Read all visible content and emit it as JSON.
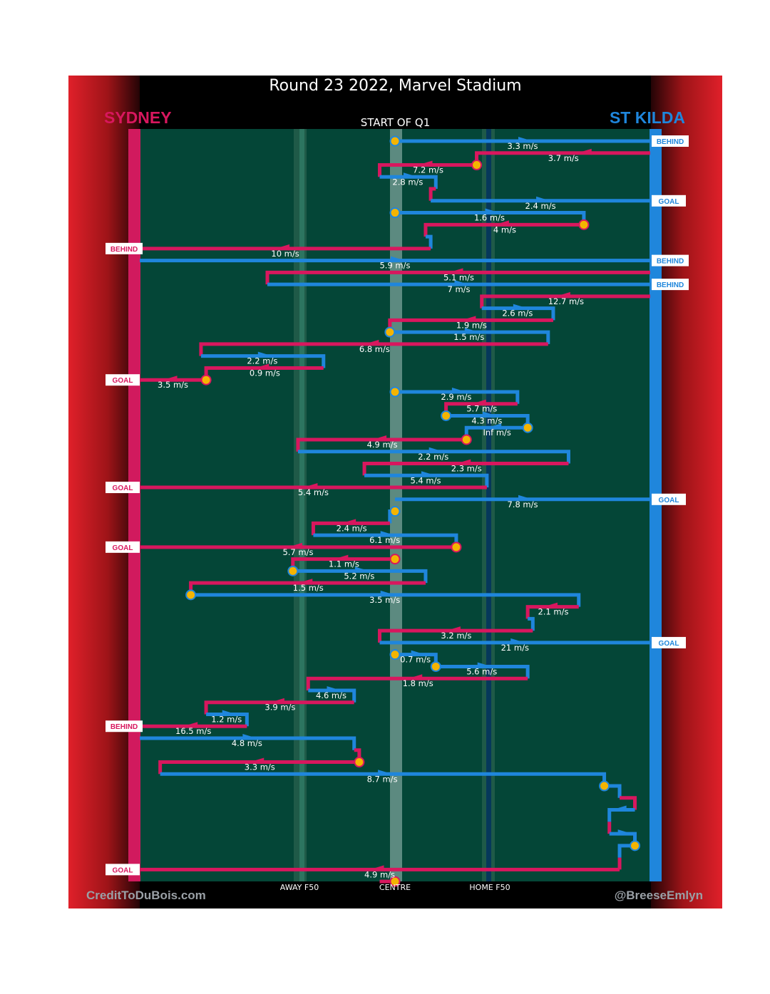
{
  "title": "Round 23 2022, Marvel Stadium",
  "teams": {
    "left": {
      "name": "SYDNEY",
      "color": "#d8175e"
    },
    "right": {
      "name": "ST KILDA",
      "color": "#1f86dc"
    }
  },
  "start_label": "START OF Q1",
  "axis_labels": {
    "away_f50": "AWAY F50",
    "centre": "CENTRE",
    "home_f50": "HOME F50"
  },
  "credits": {
    "left": "CreditToDuBois.com",
    "right": "@BreeseEmlyn"
  },
  "colors": {
    "sydney": "#d8175e",
    "st_kilda": "#1f86dc",
    "ball": "#f4b400",
    "field": "#044637"
  },
  "icons": {
    "ball": "ball-marker-icon",
    "arrow": "arrow-icon"
  },
  "chart_data": {
    "type": "line",
    "x_axis": "field position, 0 = Sydney goal line, 100 = St Kilda goal line",
    "y_axis": "chain sequence, top to bottom",
    "chains": [
      {
        "seq": 1,
        "team": "STK",
        "speed": "3.3 m/s",
        "path": [
          [
            50,
            1
          ],
          [
            100,
            1
          ]
        ],
        "end": "BEHIND",
        "ball_start": true
      },
      {
        "seq": 2,
        "team": "SYD",
        "speed": "3.7 m/s",
        "path": [
          [
            100,
            2
          ],
          [
            66,
            2
          ],
          [
            66,
            3
          ]
        ],
        "arrow_start": true
      },
      {
        "seq": 3,
        "team": "SYD",
        "speed": "7.2 m/s",
        "path": [
          [
            66,
            3
          ],
          [
            47,
            3
          ],
          [
            47,
            4
          ]
        ],
        "ball_start": true
      },
      {
        "seq": 4,
        "team": "STK",
        "speed": "2.8 m/s",
        "path": [
          [
            47,
            4
          ],
          [
            58,
            4
          ],
          [
            58,
            5
          ]
        ]
      },
      {
        "seq": 5,
        "team": "SYD",
        "speed": "",
        "path": [
          [
            58,
            5
          ],
          [
            57,
            5
          ],
          [
            57,
            6
          ]
        ]
      },
      {
        "seq": 6,
        "team": "STK",
        "speed": "2.4 m/s",
        "path": [
          [
            57,
            6
          ],
          [
            100,
            6
          ]
        ],
        "end": "GOAL"
      },
      {
        "seq": 7,
        "team": "STK",
        "speed": "1.6 m/s",
        "path": [
          [
            50,
            7
          ],
          [
            87,
            7
          ],
          [
            87,
            8
          ]
        ],
        "ball_start": true
      },
      {
        "seq": 8,
        "team": "SYD",
        "speed": "4 m/s",
        "path": [
          [
            87,
            8
          ],
          [
            56,
            8
          ],
          [
            56,
            9
          ]
        ],
        "ball_start": true
      },
      {
        "seq": 9,
        "team": "STK",
        "speed": "",
        "path": [
          [
            56,
            9
          ],
          [
            57,
            9
          ],
          [
            57,
            10
          ]
        ]
      },
      {
        "seq": 10,
        "team": "SYD",
        "speed": "10 m/s",
        "path": [
          [
            57,
            10
          ],
          [
            0,
            10
          ]
        ],
        "end": "BEHIND"
      },
      {
        "seq": 11,
        "team": "STK",
        "speed": "5.9 m/s",
        "path": [
          [
            0,
            11
          ],
          [
            100,
            11
          ]
        ],
        "end": "BEHIND"
      },
      {
        "seq": 12,
        "team": "SYD",
        "speed": "5.1 m/s",
        "path": [
          [
            100,
            12
          ],
          [
            25,
            12
          ],
          [
            25,
            13
          ]
        ]
      },
      {
        "seq": 13,
        "team": "STK",
        "speed": "7 m/s",
        "path": [
          [
            25,
            13
          ],
          [
            100,
            13
          ]
        ],
        "end": "BEHIND"
      },
      {
        "seq": 14,
        "team": "SYD",
        "speed": "12.7 m/s",
        "path": [
          [
            100,
            14
          ],
          [
            67,
            14
          ],
          [
            67,
            15
          ]
        ]
      },
      {
        "seq": 15,
        "team": "STK",
        "speed": "2.6 m/s",
        "path": [
          [
            67,
            15
          ],
          [
            81,
            15
          ],
          [
            81,
            16
          ]
        ]
      },
      {
        "seq": 16,
        "team": "SYD",
        "speed": "1.9 m/s",
        "path": [
          [
            81,
            16
          ],
          [
            49,
            16
          ],
          [
            49,
            17
          ]
        ]
      },
      {
        "seq": 17,
        "team": "STK",
        "speed": "1.5 m/s",
        "path": [
          [
            49,
            17
          ],
          [
            80,
            17
          ],
          [
            80,
            18
          ]
        ],
        "ball_start": true
      },
      {
        "seq": 18,
        "team": "SYD",
        "speed": "6.8 m/s",
        "path": [
          [
            80,
            18
          ],
          [
            12,
            18
          ],
          [
            12,
            19
          ]
        ]
      },
      {
        "seq": 19,
        "team": "STK",
        "speed": "2.2 m/s",
        "path": [
          [
            12,
            19
          ],
          [
            36,
            19
          ],
          [
            36,
            20
          ]
        ]
      },
      {
        "seq": 20,
        "team": "SYD",
        "speed": "0.9 m/s",
        "path": [
          [
            36,
            20
          ],
          [
            13,
            20
          ],
          [
            13,
            21
          ]
        ]
      },
      {
        "seq": 21,
        "team": "SYD",
        "speed": "3.5 m/s",
        "path": [
          [
            13,
            21
          ],
          [
            0,
            21
          ]
        ],
        "end": "GOAL",
        "ball_start": true
      },
      {
        "seq": 22,
        "team": "STK",
        "speed": "2.9 m/s",
        "path": [
          [
            50,
            22
          ],
          [
            74,
            22
          ],
          [
            74,
            23
          ]
        ],
        "ball_start": true
      },
      {
        "seq": 23,
        "team": "SYD",
        "speed": "5.7 m/s",
        "path": [
          [
            74,
            23
          ],
          [
            60,
            23
          ],
          [
            60,
            24
          ]
        ]
      },
      {
        "seq": 24,
        "team": "STK",
        "speed": "4.3 m/s",
        "path": [
          [
            60,
            24
          ],
          [
            76,
            24
          ],
          [
            76,
            25
          ]
        ],
        "ball_start": true
      },
      {
        "seq": 25,
        "team": "STK",
        "speed": "Inf m/s",
        "path": [
          [
            76,
            25
          ],
          [
            64,
            25
          ],
          [
            64,
            26
          ]
        ],
        "ball_start": true
      },
      {
        "seq": 26,
        "team": "SYD",
        "speed": "4.9 m/s",
        "path": [
          [
            64,
            26
          ],
          [
            31,
            26
          ],
          [
            31,
            27
          ]
        ],
        "ball_start": true
      },
      {
        "seq": 27,
        "team": "STK",
        "speed": "2.2 m/s",
        "path": [
          [
            31,
            27
          ],
          [
            84,
            27
          ],
          [
            84,
            28
          ]
        ]
      },
      {
        "seq": 28,
        "team": "SYD",
        "speed": "2.3 m/s",
        "path": [
          [
            84,
            28
          ],
          [
            44,
            28
          ],
          [
            44,
            29
          ]
        ]
      },
      {
        "seq": 29,
        "team": "STK",
        "speed": "5.4 m/s",
        "path": [
          [
            44,
            29
          ],
          [
            68,
            29
          ],
          [
            68,
            30
          ]
        ]
      },
      {
        "seq": 30,
        "team": "SYD",
        "speed": "5.4 m/s",
        "path": [
          [
            68,
            30
          ],
          [
            0,
            30
          ]
        ],
        "end": "GOAL"
      },
      {
        "seq": 31,
        "team": "STK",
        "speed": "7.8 m/s",
        "path": [
          [
            50,
            31
          ],
          [
            100,
            31
          ]
        ],
        "end": "GOAL"
      },
      {
        "seq": 32,
        "team": "STK",
        "speed": "",
        "path": [
          [
            50,
            32
          ],
          [
            49,
            32
          ],
          [
            49,
            33
          ]
        ],
        "ball_start": true
      },
      {
        "seq": 33,
        "team": "SYD",
        "speed": "2.4 m/s",
        "path": [
          [
            49,
            33
          ],
          [
            34,
            33
          ],
          [
            34,
            34
          ]
        ]
      },
      {
        "seq": 34,
        "team": "STK",
        "speed": "6.1 m/s",
        "path": [
          [
            34,
            34
          ],
          [
            62,
            34
          ],
          [
            62,
            35
          ]
        ]
      },
      {
        "seq": 35,
        "team": "SYD",
        "speed": "5.7 m/s",
        "path": [
          [
            62,
            35
          ],
          [
            0,
            35
          ]
        ],
        "end": "GOAL",
        "ball_start": true
      },
      {
        "seq": 36,
        "team": "SYD",
        "speed": "1.1 m/s",
        "path": [
          [
            50,
            36
          ],
          [
            30,
            36
          ],
          [
            30,
            37
          ]
        ],
        "ball_start": true
      },
      {
        "seq": 37,
        "team": "STK",
        "speed": "5.2 m/s",
        "path": [
          [
            30,
            37
          ],
          [
            56,
            37
          ],
          [
            56,
            38
          ]
        ],
        "ball_start": true
      },
      {
        "seq": 38,
        "team": "SYD",
        "speed": "1.5 m/s",
        "path": [
          [
            56,
            38
          ],
          [
            10,
            38
          ],
          [
            10,
            39
          ]
        ]
      },
      {
        "seq": 39,
        "team": "STK",
        "speed": "3.5 m/s",
        "path": [
          [
            10,
            39
          ],
          [
            86,
            39
          ],
          [
            86,
            40
          ]
        ],
        "ball_start": true
      },
      {
        "seq": 40,
        "team": "SYD",
        "speed": "2.1 m/s",
        "path": [
          [
            86,
            40
          ],
          [
            76,
            40
          ],
          [
            76,
            41
          ]
        ]
      },
      {
        "seq": 41,
        "team": "STK",
        "speed": "",
        "path": [
          [
            76,
            41
          ],
          [
            77,
            41
          ],
          [
            77,
            42
          ]
        ]
      },
      {
        "seq": 42,
        "team": "SYD",
        "speed": "3.2 m/s",
        "path": [
          [
            77,
            42
          ],
          [
            47,
            42
          ],
          [
            47,
            43
          ]
        ]
      },
      {
        "seq": 43,
        "team": "STK",
        "speed": "21 m/s",
        "path": [
          [
            47,
            43
          ],
          [
            100,
            43
          ]
        ],
        "end": "GOAL"
      },
      {
        "seq": 44,
        "team": "STK",
        "speed": "0.7 m/s",
        "path": [
          [
            50,
            44
          ],
          [
            58,
            44
          ],
          [
            58,
            45
          ]
        ],
        "ball_start": true
      },
      {
        "seq": 45,
        "team": "STK",
        "speed": "5.6 m/s",
        "path": [
          [
            58,
            45
          ],
          [
            76,
            45
          ],
          [
            76,
            46
          ]
        ],
        "ball_start": true
      },
      {
        "seq": 46,
        "team": "SYD",
        "speed": "1.8 m/s",
        "path": [
          [
            76,
            46
          ],
          [
            33,
            46
          ],
          [
            33,
            47
          ]
        ]
      },
      {
        "seq": 47,
        "team": "STK",
        "speed": "4.6 m/s",
        "path": [
          [
            33,
            47
          ],
          [
            42,
            47
          ],
          [
            42,
            48
          ]
        ]
      },
      {
        "seq": 48,
        "team": "SYD",
        "speed": "3.9 m/s",
        "path": [
          [
            42,
            48
          ],
          [
            13,
            48
          ],
          [
            13,
            49
          ]
        ]
      },
      {
        "seq": 49,
        "team": "STK",
        "speed": "1.2 m/s",
        "path": [
          [
            13,
            49
          ],
          [
            21,
            49
          ],
          [
            21,
            50
          ]
        ]
      },
      {
        "seq": 50,
        "team": "SYD",
        "speed": "16.5 m/s",
        "path": [
          [
            21,
            50
          ],
          [
            0,
            50
          ]
        ],
        "end": "BEHIND"
      },
      {
        "seq": 51,
        "team": "STK",
        "speed": "4.8 m/s",
        "path": [
          [
            0,
            51
          ],
          [
            42,
            51
          ],
          [
            42,
            52
          ]
        ]
      },
      {
        "seq": 52,
        "team": "SYD",
        "speed": "",
        "path": [
          [
            42,
            52
          ],
          [
            43,
            52
          ],
          [
            43,
            53
          ]
        ]
      },
      {
        "seq": 53,
        "team": "SYD",
        "speed": "3.3 m/s",
        "path": [
          [
            43,
            53
          ],
          [
            4,
            53
          ],
          [
            4,
            54
          ]
        ],
        "ball_start": true
      },
      {
        "seq": 54,
        "team": "STK",
        "speed": "8.7 m/s",
        "path": [
          [
            4,
            54
          ],
          [
            91,
            54
          ],
          [
            91,
            55
          ]
        ]
      },
      {
        "seq": 55,
        "team": "STK",
        "speed": "",
        "path": [
          [
            91,
            55
          ],
          [
            94,
            55
          ],
          [
            94,
            56
          ]
        ],
        "ball_start": true
      },
      {
        "seq": 56,
        "team": "SYD",
        "speed": "",
        "path": [
          [
            94,
            56
          ],
          [
            97,
            56
          ],
          [
            97,
            57
          ]
        ]
      },
      {
        "seq": 57,
        "team": "STK",
        "speed": "",
        "path": [
          [
            97,
            57
          ],
          [
            92,
            57
          ],
          [
            92,
            58
          ]
        ]
      },
      {
        "seq": 58,
        "team": "SYD",
        "speed": "",
        "path": [
          [
            92,
            58
          ],
          [
            92,
            59
          ]
        ]
      },
      {
        "seq": 59,
        "team": "STK",
        "speed": "",
        "path": [
          [
            92,
            59
          ],
          [
            97,
            59
          ],
          [
            97,
            60
          ]
        ]
      },
      {
        "seq": 60,
        "team": "STK",
        "speed": "",
        "path": [
          [
            97,
            60
          ],
          [
            94,
            60
          ],
          [
            94,
            61
          ]
        ],
        "ball_start": true
      },
      {
        "seq": 61,
        "team": "SYD",
        "speed": "",
        "path": [
          [
            94,
            61
          ],
          [
            94,
            62
          ]
        ]
      },
      {
        "seq": 62,
        "team": "SYD",
        "speed": "4.9 m/s",
        "path": [
          [
            94,
            62
          ],
          [
            0,
            62
          ]
        ],
        "end": "GOAL"
      },
      {
        "seq": 63,
        "team": "SYD",
        "speed": "",
        "path": [
          [
            50,
            63
          ],
          [
            47,
            63
          ]
        ],
        "ball_start": true
      }
    ]
  }
}
